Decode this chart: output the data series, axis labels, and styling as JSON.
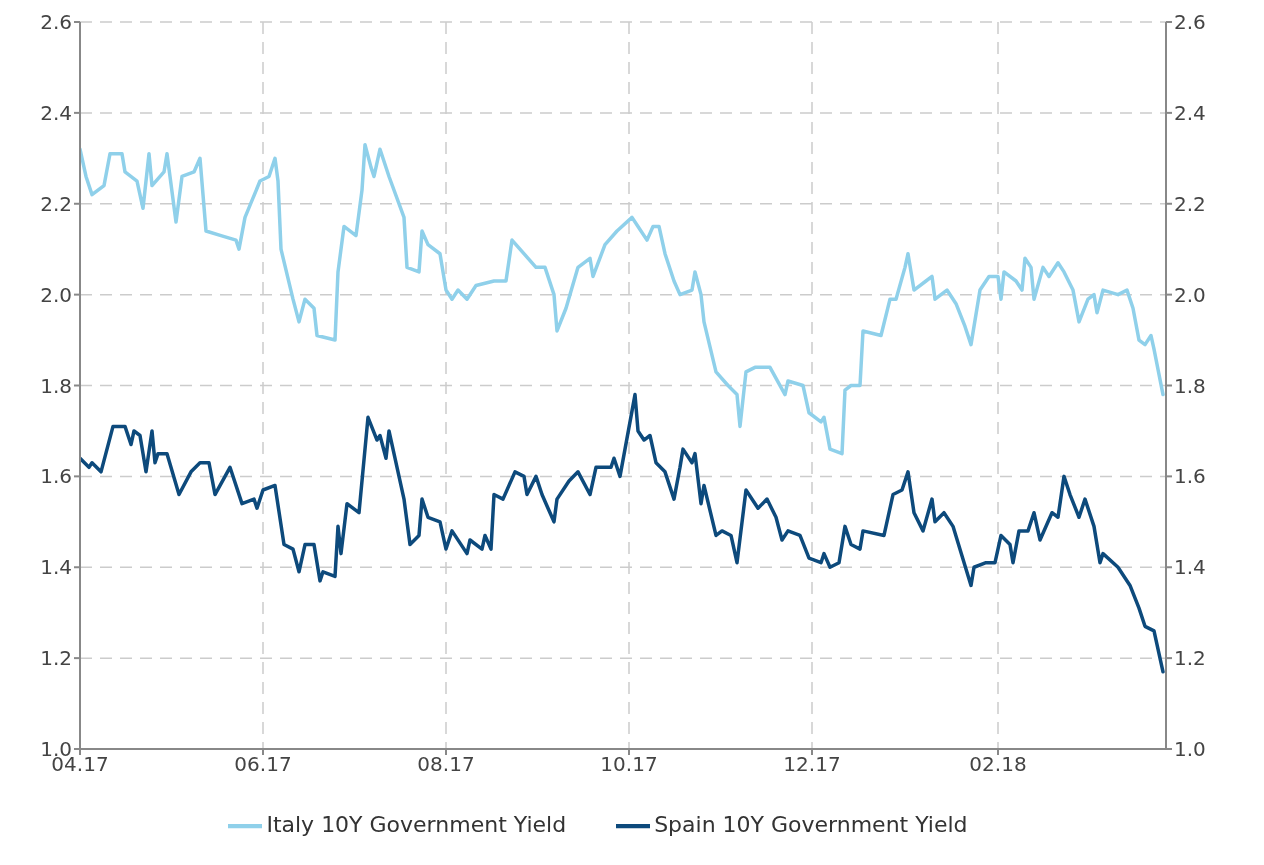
{
  "chart_data": {
    "type": "line",
    "xlim": [
      "2017-04-01",
      "2018-03-29"
    ],
    "xticks": [
      {
        "value": "2017-04-01",
        "label": "04.17"
      },
      {
        "value": "2017-06-01",
        "label": "06.17"
      },
      {
        "value": "2017-08-01",
        "label": "08.17"
      },
      {
        "value": "2017-10-01",
        "label": "10.17"
      },
      {
        "value": "2017-12-01",
        "label": "12.17"
      },
      {
        "value": "2018-02-01",
        "label": "02.18"
      }
    ],
    "ylim": [
      1,
      2.6
    ],
    "yticks": [
      {
        "value": 1,
        "label": "1.0"
      },
      1.2,
      1.4,
      1.6,
      1.8,
      {
        "value": 2,
        "label": "2.0"
      },
      2.2,
      2.4,
      2.6
    ],
    "y2lim": [
      1,
      2.6
    ],
    "y2ticks": [
      {
        "value": 1,
        "label": "1.0"
      },
      1.2,
      1.4,
      1.6,
      1.8,
      {
        "value": 2,
        "label": "2.0"
      },
      2.2,
      2.4,
      2.6
    ],
    "grid": true,
    "legend": "bottom",
    "marker": "none",
    "line_style": "solid",
    "series": [
      {
        "name": "Spain 10Y Government Yield",
        "color": "#0d4a7c",
        "x": [
          "2017-04-01",
          "2017-04-04",
          "2017-04-05",
          "2017-04-08",
          "2017-04-12",
          "2017-04-16",
          "2017-04-18",
          "2017-04-19",
          "2017-04-21",
          "2017-04-23",
          "2017-04-25",
          "2017-04-26",
          "2017-04-27",
          "2017-04-30",
          "2017-05-04",
          "2017-05-08",
          "2017-05-11",
          "2017-05-14",
          "2017-05-16",
          "2017-05-21",
          "2017-05-25",
          "2017-05-29",
          "2017-05-30",
          "2017-06-01",
          "2017-06-05",
          "2017-06-08",
          "2017-06-11",
          "2017-06-13",
          "2017-06-15",
          "2017-06-18",
          "2017-06-20",
          "2017-06-21",
          "2017-06-25",
          "2017-06-26",
          "2017-06-27",
          "2017-06-29",
          "2017-07-03",
          "2017-07-06",
          "2017-07-09",
          "2017-07-10",
          "2017-07-12",
          "2017-07-13",
          "2017-07-18",
          "2017-07-20",
          "2017-07-23",
          "2017-07-24",
          "2017-07-26",
          "2017-07-30",
          "2017-08-01",
          "2017-08-03",
          "2017-08-08",
          "2017-08-09",
          "2017-08-13",
          "2017-08-14",
          "2017-08-16",
          "2017-08-17",
          "2017-08-20",
          "2017-08-24",
          "2017-08-27",
          "2017-08-28",
          "2017-08-31",
          "2017-09-02",
          "2017-09-04",
          "2017-09-06",
          "2017-09-07",
          "2017-09-11",
          "2017-09-14",
          "2017-09-18",
          "2017-09-20",
          "2017-09-25",
          "2017-09-26",
          "2017-09-28",
          "2017-10-03",
          "2017-10-04",
          "2017-10-06",
          "2017-10-08",
          "2017-10-10",
          "2017-10-13",
          "2017-10-16",
          "2017-10-18",
          "2017-10-19",
          "2017-10-22",
          "2017-10-23",
          "2017-10-25",
          "2017-10-26",
          "2017-10-30",
          "2017-11-01",
          "2017-11-04",
          "2017-11-06",
          "2017-11-09",
          "2017-11-13",
          "2017-11-16",
          "2017-11-19",
          "2017-11-21",
          "2017-11-23",
          "2017-11-27",
          "2017-11-30",
          "2017-12-04",
          "2017-12-05",
          "2017-12-07",
          "2017-12-10",
          "2017-12-12",
          "2017-12-14",
          "2017-12-17",
          "2017-12-18",
          "2017-12-25",
          "2017-12-28",
          "2017-12-31",
          "2018-01-02",
          "2018-01-04",
          "2018-01-07",
          "2018-01-10",
          "2018-01-11",
          "2018-01-14",
          "2018-01-17",
          "2018-01-23",
          "2018-01-24",
          "2018-01-28",
          "2018-01-31",
          "2018-02-02",
          "2018-02-05",
          "2018-02-06",
          "2018-02-08",
          "2018-02-11",
          "2018-02-13",
          "2018-02-15",
          "2018-02-19",
          "2018-02-21",
          "2018-02-23",
          "2018-02-25",
          "2018-02-28",
          "2018-03-02",
          "2018-03-05",
          "2018-03-07",
          "2018-03-08",
          "2018-03-13",
          "2018-03-17",
          "2018-03-20",
          "2018-03-22",
          "2018-03-25",
          "2018-03-28"
        ],
        "values": [
          1.64,
          1.62,
          1.63,
          1.61,
          1.71,
          1.71,
          1.67,
          1.7,
          1.69,
          1.61,
          1.7,
          1.63,
          1.65,
          1.65,
          1.56,
          1.61,
          1.63,
          1.63,
          1.56,
          1.62,
          1.54,
          1.55,
          1.53,
          1.57,
          1.58,
          1.45,
          1.44,
          1.39,
          1.45,
          1.45,
          1.37,
          1.39,
          1.38,
          1.49,
          1.43,
          1.54,
          1.52,
          1.73,
          1.68,
          1.69,
          1.64,
          1.7,
          1.55,
          1.45,
          1.47,
          1.55,
          1.51,
          1.5,
          1.44,
          1.48,
          1.43,
          1.46,
          1.44,
          1.47,
          1.44,
          1.56,
          1.55,
          1.61,
          1.6,
          1.56,
          1.6,
          1.56,
          1.53,
          1.5,
          1.55,
          1.59,
          1.61,
          1.56,
          1.62,
          1.62,
          1.64,
          1.6,
          1.78,
          1.7,
          1.68,
          1.69,
          1.63,
          1.61,
          1.55,
          1.62,
          1.66,
          1.63,
          1.65,
          1.54,
          1.58,
          1.47,
          1.48,
          1.47,
          1.41,
          1.57,
          1.53,
          1.55,
          1.51,
          1.46,
          1.48,
          1.47,
          1.42,
          1.41,
          1.43,
          1.4,
          1.41,
          1.49,
          1.45,
          1.44,
          1.48,
          1.47,
          1.56,
          1.57,
          1.61,
          1.52,
          1.48,
          1.55,
          1.5,
          1.52,
          1.49,
          1.36,
          1.4,
          1.41,
          1.41,
          1.47,
          1.45,
          1.41,
          1.48,
          1.48,
          1.52,
          1.46,
          1.52,
          1.51,
          1.6,
          1.56,
          1.51,
          1.55,
          1.49,
          1.41,
          1.43,
          1.4,
          1.36,
          1.31,
          1.27,
          1.26,
          1.17
        ]
      },
      {
        "name": "Italy 10Y Government Yield",
        "color": "#8fd0ea",
        "x": [
          "2017-04-01",
          "2017-04-03",
          "2017-04-05",
          "2017-04-09",
          "2017-04-11",
          "2017-04-15",
          "2017-04-16",
          "2017-04-20",
          "2017-04-22",
          "2017-04-23",
          "2017-04-24",
          "2017-04-25",
          "2017-04-29",
          "2017-04-30",
          "2017-05-03",
          "2017-05-05",
          "2017-05-09",
          "2017-05-11",
          "2017-05-13",
          "2017-05-18",
          "2017-05-23",
          "2017-05-24",
          "2017-05-26",
          "2017-05-31",
          "2017-06-03",
          "2017-06-05",
          "2017-06-06",
          "2017-06-07",
          "2017-06-11",
          "2017-06-13",
          "2017-06-15",
          "2017-06-18",
          "2017-06-19",
          "2017-06-25",
          "2017-06-26",
          "2017-06-28",
          "2017-07-02",
          "2017-07-04",
          "2017-07-05",
          "2017-07-07",
          "2017-07-08",
          "2017-07-10",
          "2017-07-13",
          "2017-07-18",
          "2017-07-19",
          "2017-07-23",
          "2017-07-24",
          "2017-07-26",
          "2017-07-30",
          "2017-08-01",
          "2017-08-03",
          "2017-08-05",
          "2017-08-08",
          "2017-08-11",
          "2017-08-17",
          "2017-08-21",
          "2017-08-23",
          "2017-08-31",
          "2017-09-03",
          "2017-09-06",
          "2017-09-07",
          "2017-09-10",
          "2017-09-14",
          "2017-09-18",
          "2017-09-19",
          "2017-09-23",
          "2017-09-27",
          "2017-10-02",
          "2017-10-04",
          "2017-10-07",
          "2017-10-09",
          "2017-10-11",
          "2017-10-13",
          "2017-10-16",
          "2017-10-18",
          "2017-10-22",
          "2017-10-23",
          "2017-10-25",
          "2017-10-26",
          "2017-10-30",
          "2017-11-03",
          "2017-11-06",
          "2017-11-07",
          "2017-11-09",
          "2017-11-12",
          "2017-11-17",
          "2017-11-22",
          "2017-11-23",
          "2017-11-28",
          "2017-11-30",
          "2017-12-04",
          "2017-12-05",
          "2017-12-07",
          "2017-12-11",
          "2017-12-12",
          "2017-12-14",
          "2017-12-17",
          "2017-12-18",
          "2017-12-24",
          "2017-12-27",
          "2017-12-29",
          "2018-01-01",
          "2018-01-02",
          "2018-01-04",
          "2018-01-08",
          "2018-01-10",
          "2018-01-11",
          "2018-01-15",
          "2018-01-18",
          "2018-01-21",
          "2018-01-23",
          "2018-01-26",
          "2018-01-29",
          "2018-02-01",
          "2018-02-02",
          "2018-02-03",
          "2018-02-07",
          "2018-02-09",
          "2018-02-10",
          "2018-02-12",
          "2018-02-13",
          "2018-02-16",
          "2018-02-18",
          "2018-02-21",
          "2018-02-23",
          "2018-02-26",
          "2018-02-28",
          "2018-03-03",
          "2018-03-05",
          "2018-03-06",
          "2018-03-08",
          "2018-03-13",
          "2018-03-16",
          "2018-03-18",
          "2018-03-20",
          "2018-03-22",
          "2018-03-24",
          "2018-03-25",
          "2018-03-28"
        ],
        "values": [
          2.32,
          2.26,
          2.22,
          2.24,
          2.31,
          2.31,
          2.27,
          2.25,
          2.19,
          2.25,
          2.31,
          2.24,
          2.27,
          2.31,
          2.16,
          2.26,
          2.27,
          2.3,
          2.14,
          2.13,
          2.12,
          2.1,
          2.17,
          2.25,
          2.26,
          2.3,
          2.25,
          2.1,
          1.99,
          1.94,
          1.99,
          1.97,
          1.91,
          1.9,
          2.05,
          2.15,
          2.13,
          2.23,
          2.33,
          2.28,
          2.26,
          2.32,
          2.26,
          2.17,
          2.06,
          2.05,
          2.14,
          2.11,
          2.09,
          2.01,
          1.99,
          2.01,
          1.99,
          2.02,
          2.03,
          2.03,
          2.12,
          2.06,
          2.06,
          2.0,
          1.92,
          1.97,
          2.06,
          2.08,
          2.04,
          2.11,
          2.14,
          2.17,
          2.15,
          2.12,
          2.15,
          2.15,
          2.09,
          2.03,
          2.0,
          2.01,
          2.05,
          2.0,
          1.94,
          1.83,
          1.8,
          1.78,
          1.71,
          1.83,
          1.84,
          1.84,
          1.78,
          1.81,
          1.8,
          1.74,
          1.72,
          1.73,
          1.66,
          1.65,
          1.79,
          1.8,
          1.8,
          1.92,
          1.91,
          1.99,
          1.99,
          2.06,
          2.09,
          2.01,
          2.03,
          2.04,
          1.99,
          2.01,
          1.98,
          1.93,
          1.89,
          2.01,
          2.04,
          2.04,
          1.99,
          2.05,
          2.03,
          2.01,
          2.08,
          2.06,
          1.99,
          2.06,
          2.04,
          2.07,
          2.05,
          2.01,
          1.94,
          1.99,
          2.0,
          1.96,
          2.01,
          2.0,
          2.01,
          1.97,
          1.9,
          1.89,
          1.91,
          1.88,
          1.78
        ]
      }
    ]
  }
}
